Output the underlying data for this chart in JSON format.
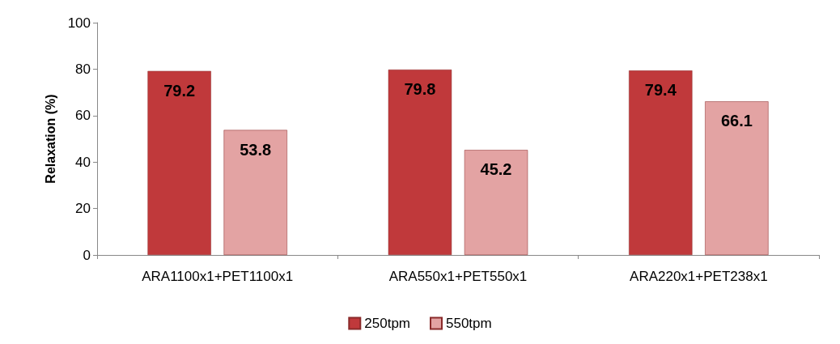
{
  "chart_data": {
    "type": "bar",
    "ylabel": "Relaxation (%)",
    "categories": [
      "ARA1100x1+PET1100x1",
      "ARA550x1+PET550x1",
      "ARA220x1+PET238x1"
    ],
    "series": [
      {
        "name": "250tpm",
        "color": "#c0393b",
        "values": [
          79.2,
          79.8,
          79.4
        ]
      },
      {
        "name": "550tpm",
        "color": "#e3a3a3",
        "values": [
          53.8,
          45.2,
          66.1
        ]
      }
    ],
    "ylim": [
      0,
      100
    ],
    "yticks": [
      0,
      20,
      40,
      60,
      80,
      100
    ],
    "grid": false,
    "legend": "bottom",
    "data_labels": true
  }
}
